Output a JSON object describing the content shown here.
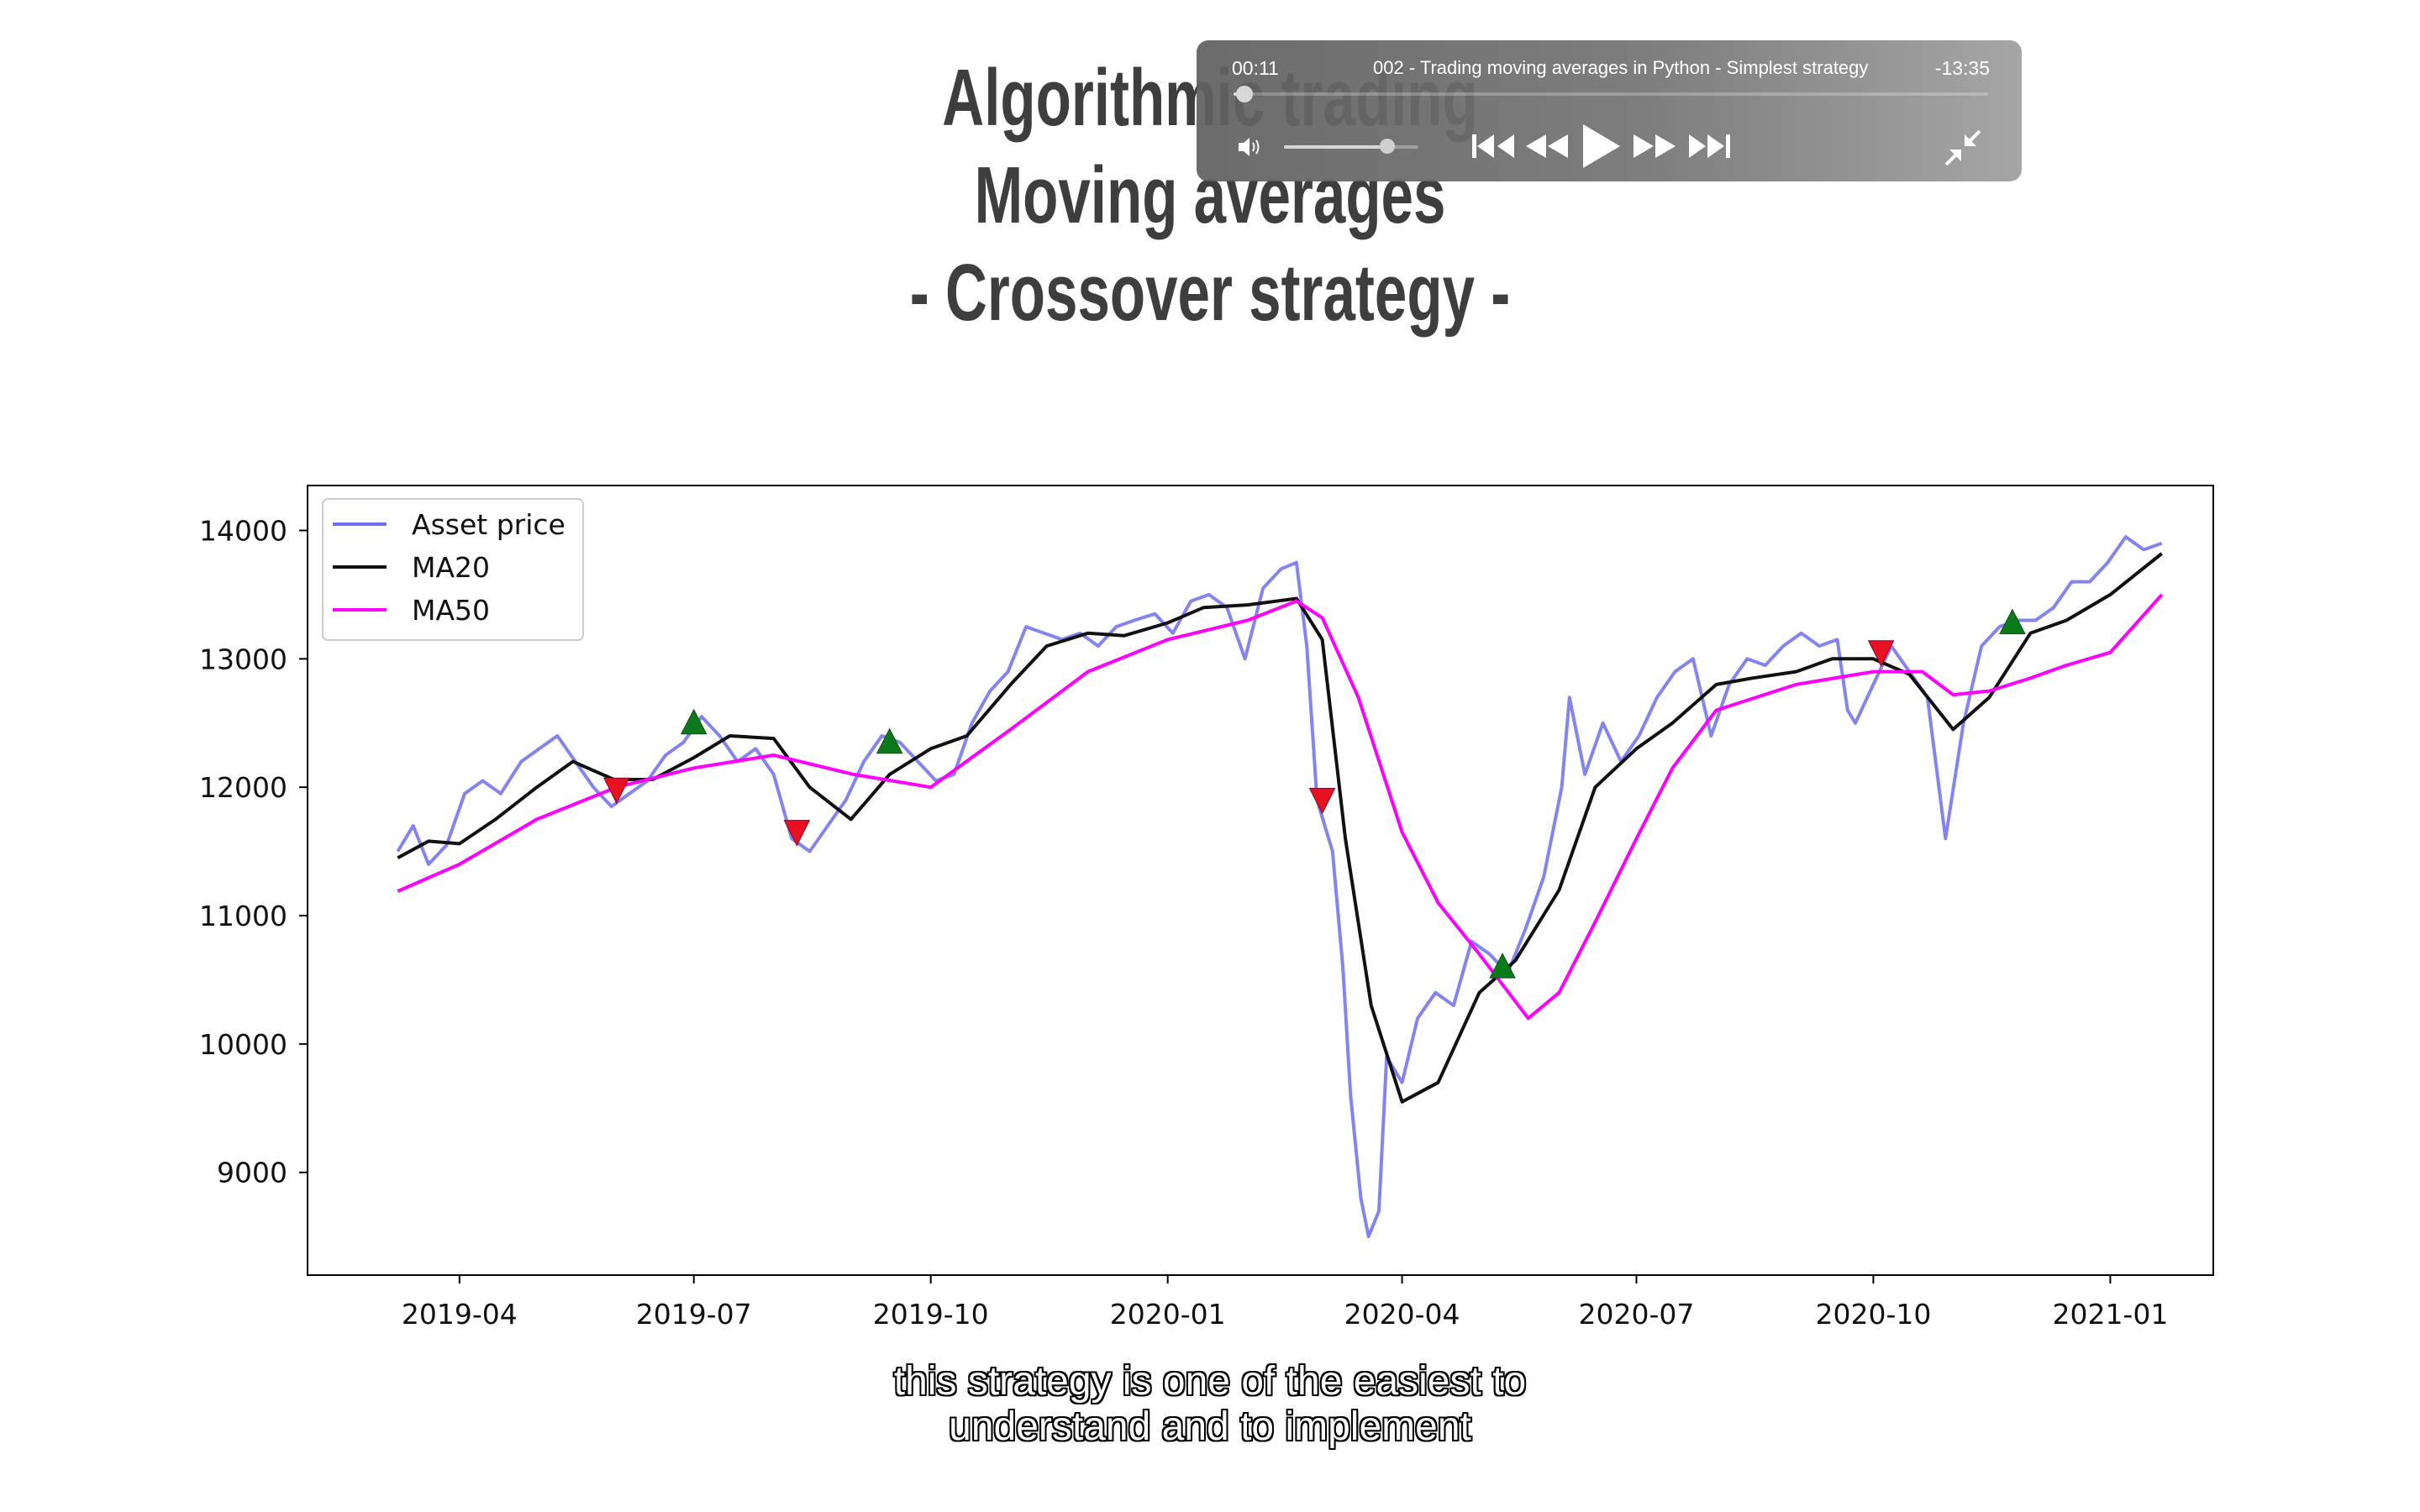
{
  "slide": {
    "title_line1": "Algorithmic trading",
    "title_line2": "Moving averages",
    "title_line3": "- Crossover strategy -"
  },
  "player": {
    "current_time": "00:11",
    "remaining_time": "-13:35",
    "video_title": "002 - Trading moving averages in Python - Simplest strategy",
    "progress_fraction": 0.014,
    "volume_fraction": 0.78,
    "icons": [
      "volume-icon",
      "skip-back-icon",
      "rewind-icon",
      "play-icon",
      "fast-forward-icon",
      "skip-forward-icon",
      "exit-fullscreen-icon"
    ]
  },
  "subtitles": {
    "line1": "this strategy is one of the easiest to",
    "line2": "understand and to implement"
  },
  "chart_data": {
    "type": "line",
    "x_type": "date",
    "xlim": [
      "2019-02-01",
      "2021-02-10"
    ],
    "ylim": [
      8200,
      14350
    ],
    "x_ticks": [
      "2019-04",
      "2019-07",
      "2019-10",
      "2020-01",
      "2020-04",
      "2020-07",
      "2020-10",
      "2021-01"
    ],
    "y_ticks": [
      9000,
      10000,
      11000,
      12000,
      13000,
      14000
    ],
    "legend_position": "top-left",
    "grid": false,
    "series": [
      {
        "name": "Asset price",
        "color": "#6f6fef",
        "points": [
          [
            "2019-03-08",
            11500
          ],
          [
            "2019-03-14",
            11700
          ],
          [
            "2019-03-20",
            11400
          ],
          [
            "2019-03-27",
            11550
          ],
          [
            "2019-04-03",
            11950
          ],
          [
            "2019-04-10",
            12050
          ],
          [
            "2019-04-17",
            11950
          ],
          [
            "2019-04-25",
            12200
          ],
          [
            "2019-05-02",
            12300
          ],
          [
            "2019-05-09",
            12400
          ],
          [
            "2019-05-16",
            12200
          ],
          [
            "2019-05-23",
            12000
          ],
          [
            "2019-05-30",
            11850
          ],
          [
            "2019-06-06",
            11950
          ],
          [
            "2019-06-13",
            12050
          ],
          [
            "2019-06-20",
            12250
          ],
          [
            "2019-06-27",
            12350
          ],
          [
            "2019-07-04",
            12550
          ],
          [
            "2019-07-11",
            12400
          ],
          [
            "2019-07-18",
            12200
          ],
          [
            "2019-07-25",
            12300
          ],
          [
            "2019-08-01",
            12100
          ],
          [
            "2019-08-08",
            11600
          ],
          [
            "2019-08-15",
            11500
          ],
          [
            "2019-08-22",
            11700
          ],
          [
            "2019-08-29",
            11900
          ],
          [
            "2019-09-05",
            12200
          ],
          [
            "2019-09-12",
            12400
          ],
          [
            "2019-09-19",
            12350
          ],
          [
            "2019-09-26",
            12200
          ],
          [
            "2019-10-03",
            12050
          ],
          [
            "2019-10-10",
            12100
          ],
          [
            "2019-10-17",
            12500
          ],
          [
            "2019-10-24",
            12750
          ],
          [
            "2019-10-31",
            12900
          ],
          [
            "2019-11-07",
            13250
          ],
          [
            "2019-11-14",
            13200
          ],
          [
            "2019-11-21",
            13150
          ],
          [
            "2019-11-28",
            13200
          ],
          [
            "2019-12-05",
            13100
          ],
          [
            "2019-12-12",
            13250
          ],
          [
            "2019-12-19",
            13300
          ],
          [
            "2019-12-27",
            13350
          ],
          [
            "2020-01-03",
            13200
          ],
          [
            "2020-01-10",
            13450
          ],
          [
            "2020-01-17",
            13500
          ],
          [
            "2020-01-24",
            13400
          ],
          [
            "2020-01-31",
            13000
          ],
          [
            "2020-02-07",
            13550
          ],
          [
            "2020-02-14",
            13700
          ],
          [
            "2020-02-20",
            13750
          ],
          [
            "2020-02-24",
            13100
          ],
          [
            "2020-02-28",
            11900
          ],
          [
            "2020-03-05",
            11500
          ],
          [
            "2020-03-09",
            10600
          ],
          [
            "2020-03-12",
            9600
          ],
          [
            "2020-03-16",
            8800
          ],
          [
            "2020-03-19",
            8500
          ],
          [
            "2020-03-23",
            8700
          ],
          [
            "2020-03-26",
            9900
          ],
          [
            "2020-04-01",
            9700
          ],
          [
            "2020-04-07",
            10200
          ],
          [
            "2020-04-14",
            10400
          ],
          [
            "2020-04-21",
            10300
          ],
          [
            "2020-04-28",
            10800
          ],
          [
            "2020-05-05",
            10700
          ],
          [
            "2020-05-12",
            10550
          ],
          [
            "2020-05-19",
            10900
          ],
          [
            "2020-05-26",
            11300
          ],
          [
            "2020-06-02",
            12000
          ],
          [
            "2020-06-05",
            12700
          ],
          [
            "2020-06-11",
            12100
          ],
          [
            "2020-06-18",
            12500
          ],
          [
            "2020-06-25",
            12200
          ],
          [
            "2020-07-02",
            12400
          ],
          [
            "2020-07-09",
            12700
          ],
          [
            "2020-07-16",
            12900
          ],
          [
            "2020-07-23",
            13000
          ],
          [
            "2020-07-30",
            12400
          ],
          [
            "2020-08-06",
            12800
          ],
          [
            "2020-08-13",
            13000
          ],
          [
            "2020-08-20",
            12950
          ],
          [
            "2020-08-27",
            13100
          ],
          [
            "2020-09-03",
            13200
          ],
          [
            "2020-09-10",
            13100
          ],
          [
            "2020-09-17",
            13150
          ],
          [
            "2020-09-21",
            12600
          ],
          [
            "2020-09-24",
            12500
          ],
          [
            "2020-10-01",
            12800
          ],
          [
            "2020-10-08",
            13100
          ],
          [
            "2020-10-15",
            12900
          ],
          [
            "2020-10-22",
            12700
          ],
          [
            "2020-10-29",
            11600
          ],
          [
            "2020-11-05",
            12500
          ],
          [
            "2020-11-12",
            13100
          ],
          [
            "2020-11-19",
            13250
          ],
          [
            "2020-11-26",
            13300
          ],
          [
            "2020-12-03",
            13300
          ],
          [
            "2020-12-10",
            13400
          ],
          [
            "2020-12-17",
            13600
          ],
          [
            "2020-12-24",
            13600
          ],
          [
            "2020-12-31",
            13750
          ],
          [
            "2021-01-07",
            13950
          ],
          [
            "2021-01-14",
            13850
          ],
          [
            "2021-01-21",
            13900
          ]
        ]
      },
      {
        "name": "MA20",
        "color": "#111111",
        "points": [
          [
            "2019-03-08",
            11450
          ],
          [
            "2019-03-20",
            11580
          ],
          [
            "2019-04-01",
            11560
          ],
          [
            "2019-04-15",
            11750
          ],
          [
            "2019-05-01",
            12000
          ],
          [
            "2019-05-15",
            12200
          ],
          [
            "2019-05-31",
            12060
          ],
          [
            "2019-06-15",
            12060
          ],
          [
            "2019-07-01",
            12230
          ],
          [
            "2019-07-15",
            12400
          ],
          [
            "2019-08-01",
            12380
          ],
          [
            "2019-08-15",
            12000
          ],
          [
            "2019-08-31",
            11750
          ],
          [
            "2019-09-15",
            12100
          ],
          [
            "2019-10-01",
            12300
          ],
          [
            "2019-10-15",
            12400
          ],
          [
            "2019-11-01",
            12800
          ],
          [
            "2019-11-15",
            13100
          ],
          [
            "2019-12-01",
            13200
          ],
          [
            "2019-12-15",
            13180
          ],
          [
            "2020-01-01",
            13280
          ],
          [
            "2020-01-15",
            13400
          ],
          [
            "2020-02-01",
            13420
          ],
          [
            "2020-02-20",
            13470
          ],
          [
            "2020-03-01",
            13150
          ],
          [
            "2020-03-10",
            11600
          ],
          [
            "2020-03-20",
            10300
          ],
          [
            "2020-04-01",
            9550
          ],
          [
            "2020-04-15",
            9700
          ],
          [
            "2020-05-01",
            10400
          ],
          [
            "2020-05-15",
            10650
          ],
          [
            "2020-06-01",
            11200
          ],
          [
            "2020-06-15",
            12000
          ],
          [
            "2020-07-01",
            12300
          ],
          [
            "2020-07-15",
            12500
          ],
          [
            "2020-08-01",
            12800
          ],
          [
            "2020-08-15",
            12850
          ],
          [
            "2020-09-01",
            12900
          ],
          [
            "2020-09-15",
            13000
          ],
          [
            "2020-10-01",
            13000
          ],
          [
            "2020-10-15",
            12880
          ],
          [
            "2020-11-01",
            12450
          ],
          [
            "2020-11-15",
            12700
          ],
          [
            "2020-12-01",
            13200
          ],
          [
            "2020-12-15",
            13300
          ],
          [
            "2021-01-01",
            13500
          ],
          [
            "2021-01-21",
            13820
          ]
        ]
      },
      {
        "name": "MA50",
        "color": "#ff00ff",
        "points": [
          [
            "2019-03-08",
            11190
          ],
          [
            "2019-04-01",
            11400
          ],
          [
            "2019-05-01",
            11750
          ],
          [
            "2019-06-01",
            12000
          ],
          [
            "2019-07-01",
            12150
          ],
          [
            "2019-08-01",
            12250
          ],
          [
            "2019-09-01",
            12100
          ],
          [
            "2019-10-01",
            12000
          ],
          [
            "2019-11-01",
            12450
          ],
          [
            "2019-12-01",
            12900
          ],
          [
            "2020-01-01",
            13150
          ],
          [
            "2020-02-01",
            13300
          ],
          [
            "2020-02-20",
            13450
          ],
          [
            "2020-03-01",
            13320
          ],
          [
            "2020-03-15",
            12700
          ],
          [
            "2020-04-01",
            11650
          ],
          [
            "2020-04-15",
            11100
          ],
          [
            "2020-05-01",
            10700
          ],
          [
            "2020-05-20",
            10200
          ],
          [
            "2020-06-01",
            10400
          ],
          [
            "2020-06-15",
            10950
          ],
          [
            "2020-07-01",
            11600
          ],
          [
            "2020-07-15",
            12150
          ],
          [
            "2020-08-01",
            12600
          ],
          [
            "2020-09-01",
            12800
          ],
          [
            "2020-10-01",
            12900
          ],
          [
            "2020-10-20",
            12900
          ],
          [
            "2020-11-01",
            12720
          ],
          [
            "2020-11-15",
            12750
          ],
          [
            "2020-12-01",
            12850
          ],
          [
            "2020-12-15",
            12950
          ],
          [
            "2021-01-01",
            13050
          ],
          [
            "2021-01-21",
            13500
          ]
        ]
      }
    ],
    "buy_signals": [
      [
        "2019-07-01",
        12500
      ],
      [
        "2019-09-15",
        12350
      ],
      [
        "2020-05-10",
        10600
      ],
      [
        "2020-11-24",
        13280
      ]
    ],
    "sell_signals": [
      [
        "2019-06-01",
        11980
      ],
      [
        "2019-08-10",
        11650
      ],
      [
        "2020-03-01",
        11900
      ],
      [
        "2020-10-04",
        13050
      ]
    ],
    "buy_color": "#0a7a1a",
    "sell_color": "#e8111f"
  }
}
